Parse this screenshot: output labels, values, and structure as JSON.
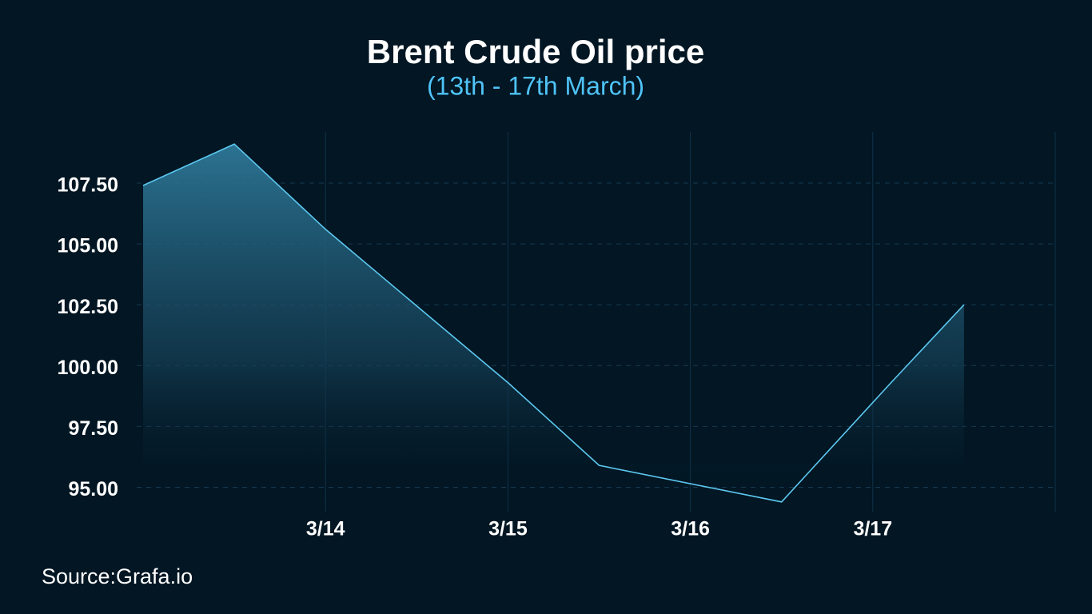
{
  "chart_data": {
    "type": "area",
    "title": "Brent Crude Oil price",
    "subtitle": "(13th - 17th March)",
    "source": "Source:Grafa.io",
    "x": [
      13,
      13.5,
      14,
      15,
      15.5,
      16.5,
      17.1,
      17.5
    ],
    "series": [
      {
        "name": "Brent Crude Oil price",
        "color": "#5cc8f0",
        "values": [
          107.4,
          109.1,
          105.6,
          99.3,
          95.9,
          94.4,
          99.3,
          102.5
        ]
      }
    ],
    "xlim": [
      13,
      18
    ],
    "xticks": [
      {
        "value": 14,
        "label": "3/14"
      },
      {
        "value": 15,
        "label": "3/15"
      },
      {
        "value": 16,
        "label": "3/16"
      },
      {
        "value": 17,
        "label": "3/17"
      }
    ],
    "ylim": [
      94,
      109.6
    ],
    "yticks": [
      {
        "value": 95,
        "label": "95.00"
      },
      {
        "value": 97.5,
        "label": "97.50"
      },
      {
        "value": 100,
        "label": "100.00"
      },
      {
        "value": 102.5,
        "label": "102.50"
      },
      {
        "value": 105,
        "label": "105.00"
      },
      {
        "value": 107.5,
        "label": "107.50"
      }
    ],
    "grid": true
  }
}
